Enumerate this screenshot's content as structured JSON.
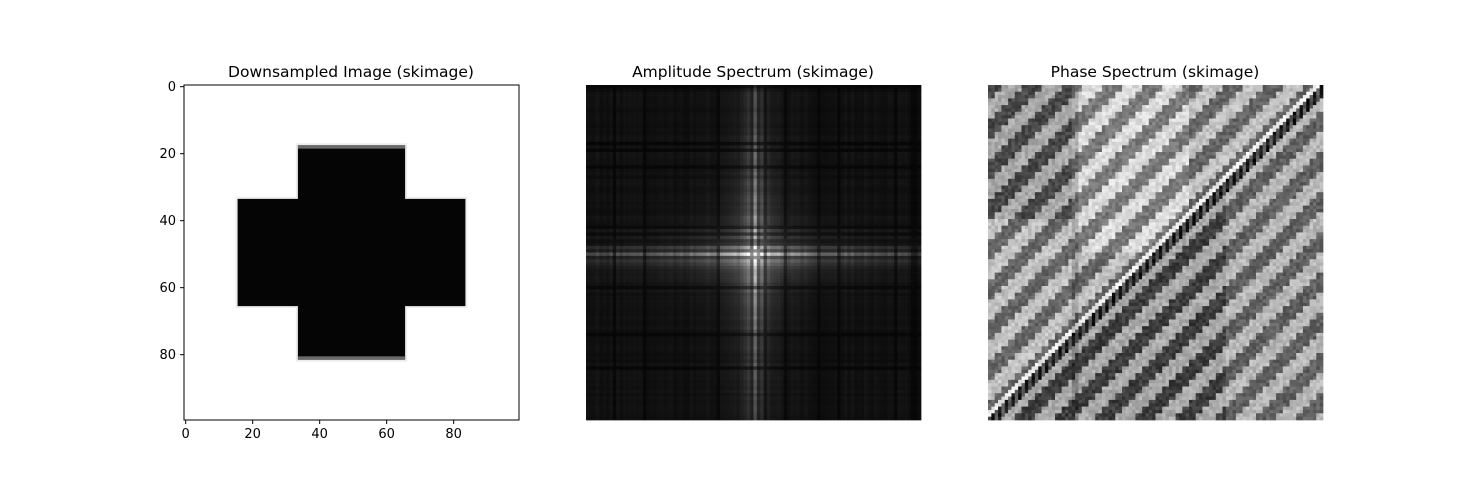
{
  "chart_data": [
    {
      "type": "heatmap",
      "title": "Downsampled Image (skimage)",
      "colormap": "gray",
      "shape": [
        100,
        100
      ],
      "xlim": [
        0,
        100
      ],
      "ylim": [
        100,
        0
      ],
      "xticks": [
        0,
        20,
        40,
        60,
        80
      ],
      "yticks": [
        0,
        20,
        40,
        60,
        80
      ],
      "xtick_labels": [
        "0",
        "20",
        "40",
        "60",
        "80"
      ],
      "ytick_labels": [
        "0",
        "20",
        "40",
        "60",
        "80"
      ],
      "content": {
        "background": "white",
        "shape": "black cross",
        "vertical_bar": {
          "x": [
            34,
            66
          ],
          "y": [
            18,
            82
          ]
        },
        "horizontal_bar": {
          "x": [
            16,
            84
          ],
          "y": [
            34,
            66
          ]
        },
        "edge_rows_gray": [
          18,
          81
        ]
      }
    },
    {
      "type": "heatmap",
      "title": "Amplitude Spectrum (skimage)",
      "colormap": "gray",
      "axis": "off",
      "shape": [
        100,
        100
      ],
      "content": {
        "description": "centered log-amplitude spectrum",
        "center_peak": [
          50,
          50
        ]
      }
    },
    {
      "type": "heatmap",
      "title": "Phase Spectrum (skimage)",
      "colormap": "gray",
      "axis": "off",
      "shape": [
        100,
        100
      ],
      "content": {
        "description": "phase spectrum with diagonal discontinuity"
      }
    }
  ]
}
